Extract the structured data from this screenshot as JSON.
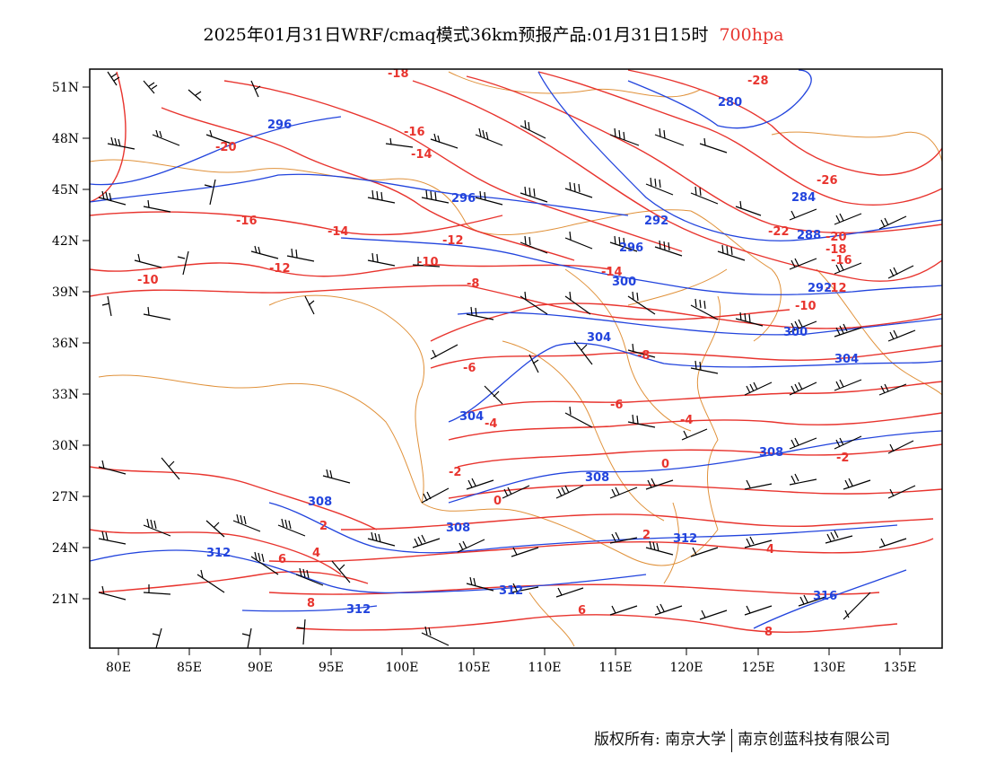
{
  "title": {
    "main": "2025年01月31日WRF/cmaq模式36km预报产品:01月31日15时",
    "level": "700hpa"
  },
  "colors": {
    "temperature": "#e8342e",
    "height": "#2244dd",
    "border": "#e0913a",
    "wind": "#000000"
  },
  "axes": {
    "lat_labels": [
      "51N",
      "48N",
      "45N",
      "42N",
      "39N",
      "36N",
      "33N",
      "30N",
      "27N",
      "24N",
      "21N"
    ],
    "lon_labels": [
      "80E",
      "85E",
      "90E",
      "95E",
      "100E",
      "105E",
      "110E",
      "115E",
      "120E",
      "125E",
      "130E",
      "135E"
    ]
  },
  "contour_labels": {
    "temperature": [
      "-18",
      "-16",
      "-14",
      "-20",
      "-16",
      "-14",
      "-12",
      "-12",
      "-10",
      "-10",
      "-8",
      "-6",
      "-4",
      "-2",
      "0",
      "2",
      "4",
      "6",
      "8",
      "-28",
      "-26",
      "-22",
      "-20",
      "-18",
      "-16",
      "-14",
      "-12",
      "-10",
      "-8",
      "-6",
      "-4",
      "-2",
      "0",
      "2",
      "4",
      "6",
      "8"
    ],
    "height": [
      "296",
      "296",
      "292",
      "296",
      "300",
      "304",
      "304",
      "308",
      "308",
      "308",
      "312",
      "312",
      "312",
      "316",
      "280",
      "284",
      "288",
      "292",
      "300",
      "304",
      "308",
      "312"
    ]
  },
  "footer": {
    "left": "版权所有: 南京大学",
    "right": "南京创蓝科技有限公司"
  }
}
